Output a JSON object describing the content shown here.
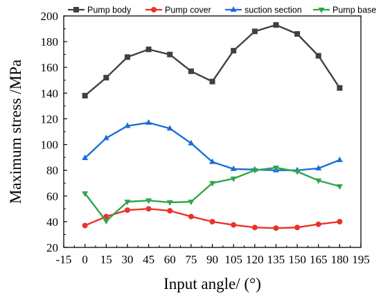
{
  "chart_data": {
    "type": "line",
    "title": "",
    "xlabel": "Input angle/ (°)",
    "ylabel": "Maximum stress /MPa",
    "xlim": [
      -15,
      195
    ],
    "ylim": [
      20,
      200
    ],
    "xticks": [
      -15,
      0,
      15,
      30,
      45,
      60,
      75,
      90,
      105,
      120,
      135,
      150,
      165,
      180,
      195
    ],
    "yticks": [
      20,
      40,
      60,
      80,
      100,
      120,
      140,
      160,
      180,
      200
    ],
    "grid": false,
    "legend_position": "top",
    "x": [
      0,
      15,
      30,
      45,
      60,
      75,
      90,
      105,
      120,
      135,
      150,
      165,
      180
    ],
    "series": [
      {
        "name": "Pump body",
        "color": "#404040",
        "marker": "square",
        "values": [
          138,
          152,
          168,
          174,
          170,
          157,
          149,
          173,
          188,
          193,
          186,
          169,
          144
        ]
      },
      {
        "name": "Pump cover",
        "color": "#e8332c",
        "marker": "circle",
        "values": [
          37,
          44,
          49,
          50,
          48.5,
          44,
          40,
          37.5,
          35.5,
          35,
          35.5,
          38,
          40
        ]
      },
      {
        "name": "suction section",
        "color": "#1a6fd6",
        "marker": "triangle-up",
        "values": [
          89.5,
          105,
          114.5,
          117,
          112.5,
          101,
          86.5,
          81,
          80.5,
          80,
          80,
          81.5,
          88
        ]
      },
      {
        "name": "Pump base",
        "color": "#2ea64a",
        "marker": "triangle-down",
        "values": [
          62,
          40.5,
          55.5,
          56.5,
          55,
          55.5,
          70,
          73.5,
          80,
          82,
          79,
          72,
          67.5
        ]
      }
    ]
  }
}
